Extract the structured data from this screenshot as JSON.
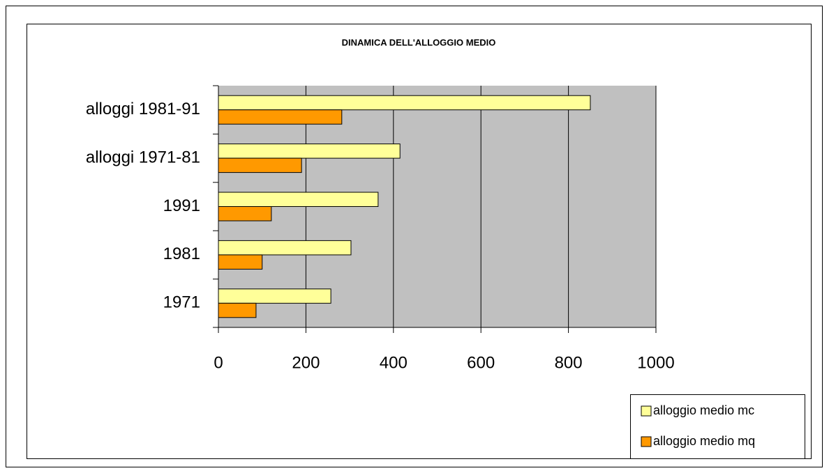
{
  "chart_data": {
    "type": "hbar",
    "title": "DINAMICA DELL'ALLOGGIO MEDIO",
    "categories": [
      "1971",
      "1981",
      "1991",
      "alloggi 1971-81",
      "alloggi 1981-91"
    ],
    "series": [
      {
        "name": "alloggio medio mc",
        "color": "#ffff99",
        "values": [
          257,
          303,
          365,
          415,
          850
        ]
      },
      {
        "name": "alloggio medio mq",
        "color": "#ff9900",
        "values": [
          86,
          100,
          121,
          190,
          282
        ]
      }
    ],
    "xlim": [
      0,
      1000
    ],
    "xticks": [
      0,
      200,
      400,
      600,
      800,
      1000
    ],
    "grid": true,
    "legend": "bottom-right"
  }
}
